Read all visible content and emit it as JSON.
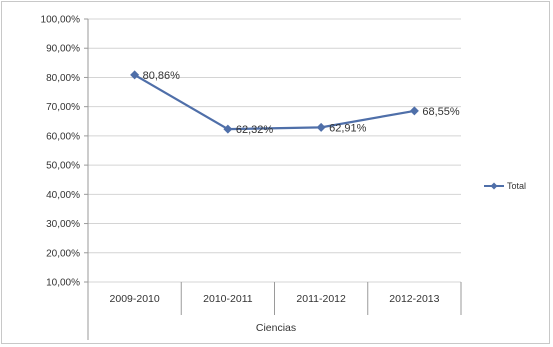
{
  "chart_data": {
    "type": "line",
    "categories": [
      "2009-2010",
      "2010-2011",
      "2011-2012",
      "2012-2013"
    ],
    "group_label": "Ciencias",
    "series": [
      {
        "name": "Total",
        "values": [
          80.86,
          62.32,
          62.91,
          68.55
        ],
        "labels": [
          "80,86%",
          "62,32%",
          "62,91%",
          "68,55%"
        ],
        "color": "#4f6fa9"
      }
    ],
    "ylim": [
      10,
      100
    ],
    "yticks": [
      "10,00%",
      "20,00%",
      "30,00%",
      "40,00%",
      "50,00%",
      "60,00%",
      "70,00%",
      "80,00%",
      "90,00%",
      "100,00%"
    ],
    "ytick_values": [
      10,
      20,
      30,
      40,
      50,
      60,
      70,
      80,
      90,
      100
    ],
    "grid": true,
    "legend_position": "right",
    "colors": {
      "gridline": "#d4d4d4",
      "axis": "#9a9a9a"
    }
  }
}
